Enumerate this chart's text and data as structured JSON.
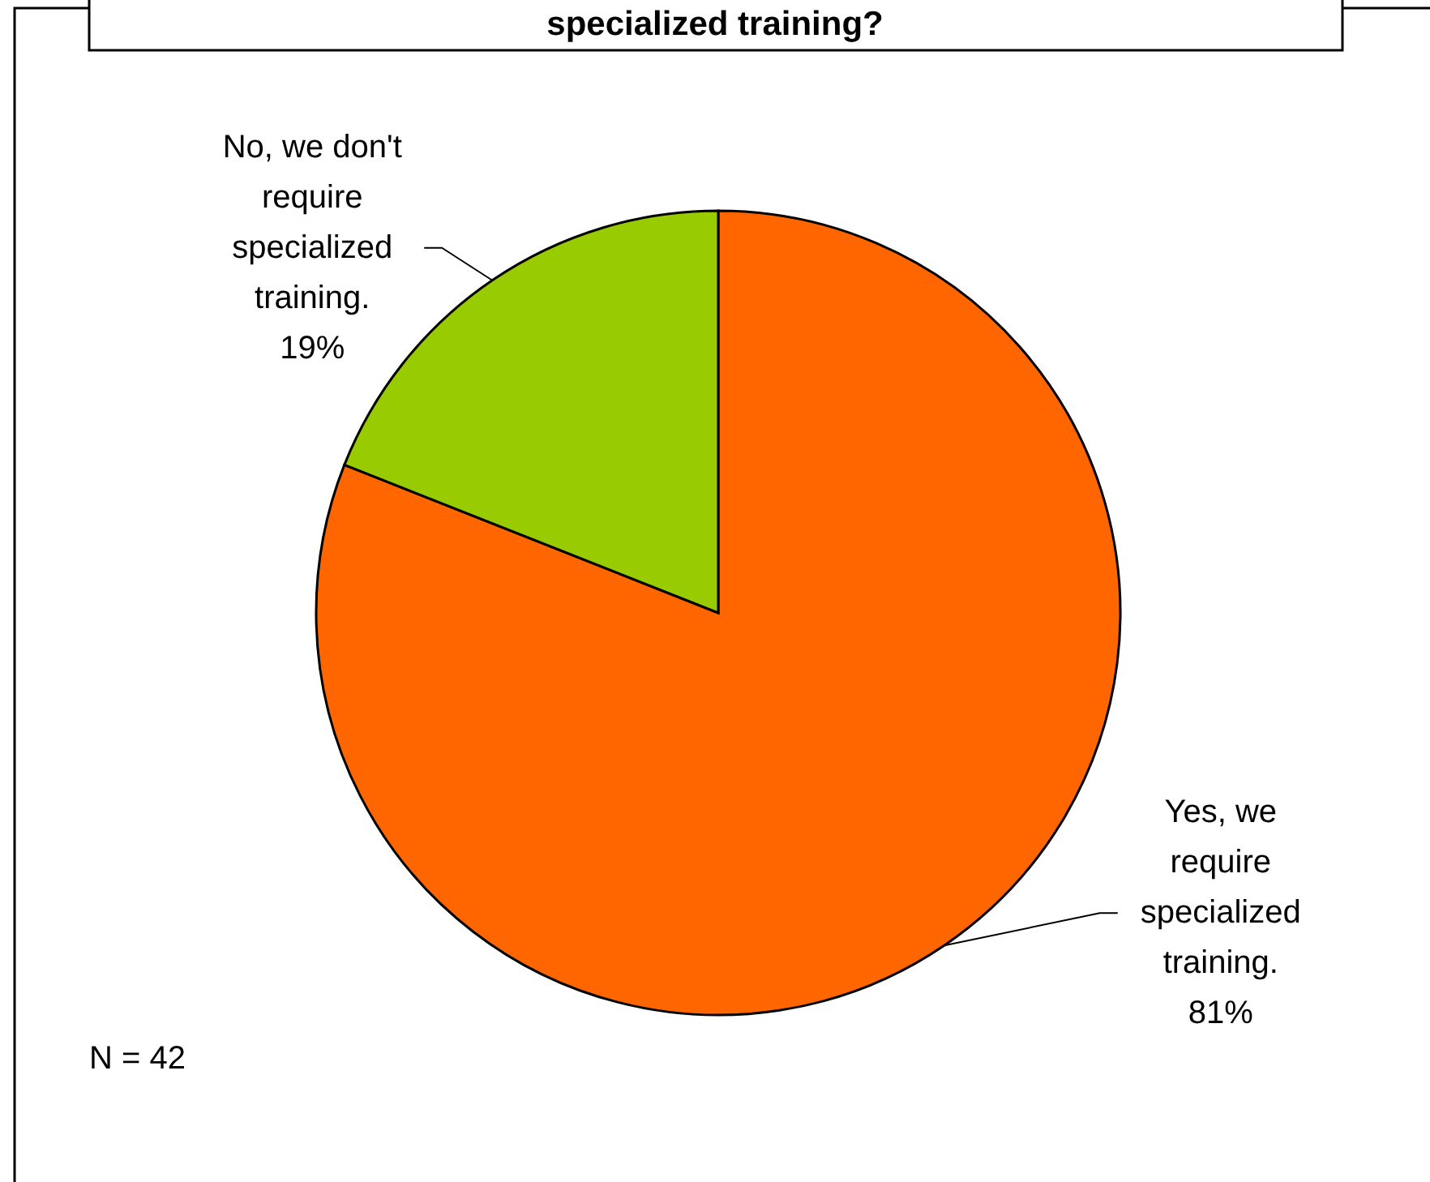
{
  "chart_data": {
    "type": "pie",
    "title": "specialized training?",
    "categories": [
      "Yes, we require specialized training.",
      "No, we don't require specialized training."
    ],
    "values": [
      81,
      19
    ],
    "colors": [
      "#ff6600",
      "#99cc00"
    ],
    "value_labels": [
      "81%",
      "19%"
    ],
    "annotations": [
      "N = 42"
    ]
  }
}
